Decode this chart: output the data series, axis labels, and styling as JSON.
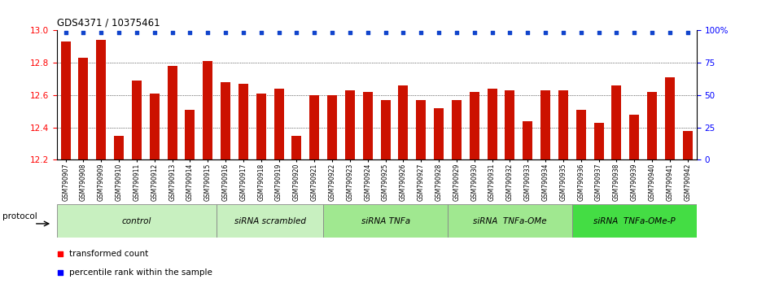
{
  "title": "GDS4371 / 10375461",
  "samples": [
    "GSM790907",
    "GSM790908",
    "GSM790909",
    "GSM790910",
    "GSM790911",
    "GSM790912",
    "GSM790913",
    "GSM790914",
    "GSM790915",
    "GSM790916",
    "GSM790917",
    "GSM790918",
    "GSM790919",
    "GSM790920",
    "GSM790921",
    "GSM790922",
    "GSM790923",
    "GSM790924",
    "GSM790925",
    "GSM790926",
    "GSM790927",
    "GSM790928",
    "GSM790929",
    "GSM790930",
    "GSM790931",
    "GSM790932",
    "GSM790933",
    "GSM790934",
    "GSM790935",
    "GSM790936",
    "GSM790937",
    "GSM790938",
    "GSM790939",
    "GSM790940",
    "GSM790941",
    "GSM790942"
  ],
  "bar_values": [
    12.93,
    12.83,
    12.94,
    12.35,
    12.69,
    12.61,
    12.78,
    12.51,
    12.81,
    12.68,
    12.67,
    12.61,
    12.64,
    12.35,
    12.6,
    12.6,
    12.63,
    12.62,
    12.57,
    12.66,
    12.57,
    12.52,
    12.57,
    12.62,
    12.64,
    12.63,
    12.44,
    12.63,
    12.63,
    12.51,
    12.43,
    12.66,
    12.48,
    12.62,
    12.71,
    12.38
  ],
  "groups": [
    {
      "label": "control",
      "start": 0,
      "end": 9,
      "color": "#c8f0c0"
    },
    {
      "label": "siRNA scrambled",
      "start": 9,
      "end": 15,
      "color": "#c8f0c0"
    },
    {
      "label": "siRNA TNFa",
      "start": 15,
      "end": 22,
      "color": "#a0e890"
    },
    {
      "label": "siRNA  TNFa-OMe",
      "start": 22,
      "end": 29,
      "color": "#a0e890"
    },
    {
      "label": "siRNA  TNFa-OMe-P",
      "start": 29,
      "end": 36,
      "color": "#44dd44"
    }
  ],
  "ylim": [
    12.2,
    13.0
  ],
  "yticks_left": [
    12.2,
    12.4,
    12.6,
    12.8,
    13.0
  ],
  "yticks_right": [
    0,
    25,
    50,
    75,
    100
  ],
  "grid_lines": [
    12.4,
    12.6,
    12.8
  ],
  "bar_color": "#cc1100",
  "percentile_color": "#1144cc",
  "fig_bg": "#ffffff"
}
